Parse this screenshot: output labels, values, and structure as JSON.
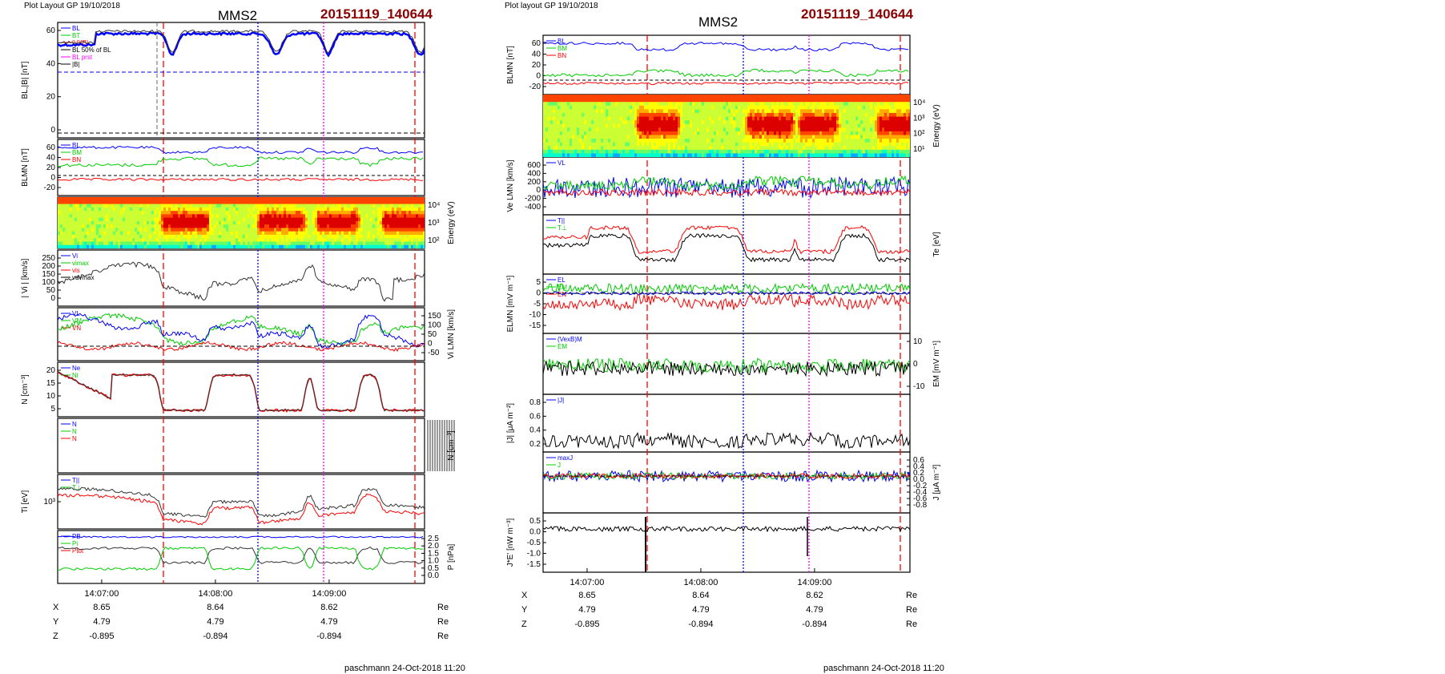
{
  "left": {
    "header": "Plot Layout GP 19/10/2018",
    "spacecraft": "MMS2",
    "event": "20151119_140644",
    "time_ticks": [
      "14:07:00",
      "14:08:00",
      "14:09:00"
    ],
    "orbit": {
      "rows": [
        {
          "label": "X",
          "values": [
            "8.65",
            "8.64",
            "8.62"
          ],
          "unit": "Re"
        },
        {
          "label": "Y",
          "values": [
            "4.79",
            "4.79",
            "4.79"
          ],
          "unit": "Re"
        },
        {
          "label": "Z",
          "values": [
            "-0.895",
            "-0.894",
            "-0.894"
          ],
          "unit": "Re"
        }
      ]
    },
    "footer": "paschmann 24-Oct-2018 11:20",
    "panels": [
      {
        "key": "bl",
        "ylabel": "BL,|B| [nT]",
        "side": "left",
        "ticks": [
          "60",
          "40",
          "20",
          "0"
        ],
        "legend": [
          "BL",
          "BT",
          "|VXB|",
          "BL 50% of BL",
          "BL prst",
          "|B|"
        ]
      },
      {
        "key": "blmn",
        "ylabel": "BLMN [nT]",
        "side": "left",
        "ticks": [
          "60",
          "40",
          "20",
          "0",
          "-20"
        ],
        "legend": [
          "BL",
          "BM",
          "BN"
        ]
      },
      {
        "key": "spec",
        "ylabel": "Energy (eV)",
        "side": "right",
        "ticks": [
          "10⁴",
          "10³",
          "10²"
        ],
        "legend": []
      },
      {
        "key": "vmag",
        "ylabel": "| Vi | [km/s]",
        "side": "left",
        "ticks": [
          "250",
          "200",
          "150",
          "100",
          "50",
          "0"
        ],
        "legend": [
          "Vi",
          "vimax",
          "vis",
          "vdvmax"
        ]
      },
      {
        "key": "vlmn",
        "ylabel": "Vi LMN [km/s]",
        "side": "right",
        "ticks": [
          "150",
          "100",
          "50",
          "0",
          "-50"
        ],
        "legend": [
          "VL",
          "VM",
          "VN"
        ]
      },
      {
        "key": "dens",
        "ylabel": "N [cm⁻³]",
        "side": "left",
        "ticks": [
          "20",
          "15",
          "10",
          "5"
        ],
        "legend": [
          "Ne",
          "Ni"
        ]
      },
      {
        "key": "nblank",
        "ylabel": "N [cm⁻³]",
        "side": "right",
        "ticks": [],
        "legend": [
          "N",
          "N",
          "N"
        ]
      },
      {
        "key": "ti",
        "ylabel": "Ti [eV]",
        "side": "left",
        "ticks": [
          "10³"
        ],
        "legend": [
          "T||",
          "T⊥"
        ]
      },
      {
        "key": "pres",
        "ylabel": "P [nPa]",
        "side": "right",
        "ticks": [
          "2.5",
          "2.0",
          "1.5",
          "1.0",
          "0.5",
          "0.0"
        ],
        "legend": [
          "PB",
          "Pi",
          "Ptot"
        ]
      }
    ]
  },
  "right": {
    "header": "Plot layout GP 19/10/2018",
    "spacecraft": "MMS2",
    "event": "20151119_140644",
    "time_ticks": [
      "14:07:00",
      "14:08:00",
      "14:09:00"
    ],
    "orbit": {
      "rows": [
        {
          "label": "X",
          "values": [
            "8.65",
            "8.64",
            "8.62"
          ],
          "unit": "Re"
        },
        {
          "label": "Y",
          "values": [
            "4.79",
            "4.79",
            "4.79"
          ],
          "unit": "Re"
        },
        {
          "label": "Z",
          "values": [
            "-0.895",
            "-0.894",
            "-0.894"
          ],
          "unit": "Re"
        }
      ]
    },
    "footer": "paschmann 24-Oct-2018 11:20",
    "panels": [
      {
        "key": "blmn",
        "ylabel": "BLMN [nT]",
        "side": "left",
        "ticks": [
          "60",
          "40",
          "20",
          "0",
          "-20"
        ],
        "legend": [
          "BL",
          "BM",
          "BN"
        ]
      },
      {
        "key": "spec",
        "ylabel": "Energy (eV)",
        "side": "right",
        "ticks": [
          "10⁴",
          "10³",
          "10²",
          "10¹"
        ],
        "legend": []
      },
      {
        "key": "ve",
        "ylabel": "Ve LMN [km/s]",
        "side": "left",
        "ticks": [
          "600",
          "400",
          "200",
          "0",
          "-200",
          "-400"
        ],
        "legend": [
          "VL"
        ]
      },
      {
        "key": "te",
        "ylabel": "Te [eV]",
        "side": "right",
        "ticks": [],
        "legend": [
          "T||",
          "T⊥"
        ]
      },
      {
        "key": "elmn",
        "ylabel": "ELMN [mV m⁻¹]",
        "side": "left",
        "ticks": [
          "5",
          "0",
          "-5",
          "-10",
          "-15"
        ],
        "legend": [
          "EL",
          "EM",
          "EN"
        ]
      },
      {
        "key": "em",
        "ylabel": "EM [mV m⁻¹]",
        "side": "right",
        "ticks": [
          "10",
          "0",
          "-10"
        ],
        "legend": [
          "(VexB)M",
          "EM"
        ]
      },
      {
        "key": "j",
        "ylabel": "|J| [μA m⁻²]",
        "side": "left",
        "ticks": [
          "0.8",
          "0.6",
          "0.4",
          "0.2"
        ],
        "legend": [
          "|J|"
        ]
      },
      {
        "key": "jlmn",
        "ylabel": "J [μA m⁻²]",
        "side": "right",
        "ticks": [
          "0.6",
          "0.4",
          "0.2",
          "0.0",
          "-0.2",
          "-0.4",
          "-0.6",
          "-0.8"
        ],
        "legend": [
          "maxJ",
          "J"
        ]
      },
      {
        "key": "je",
        "ylabel": "J*E' [nW m⁻³]",
        "side": "left",
        "ticks": [
          "0.5",
          "0.0",
          "-0.5",
          "-1.0",
          "-1.5"
        ],
        "legend": []
      }
    ]
  },
  "colors": {
    "red": "#ff0000",
    "green": "#00cc00",
    "blue": "#0000ff",
    "black": "#000000",
    "magenta": "#ff00ff",
    "darkred": "#8b0000"
  }
}
